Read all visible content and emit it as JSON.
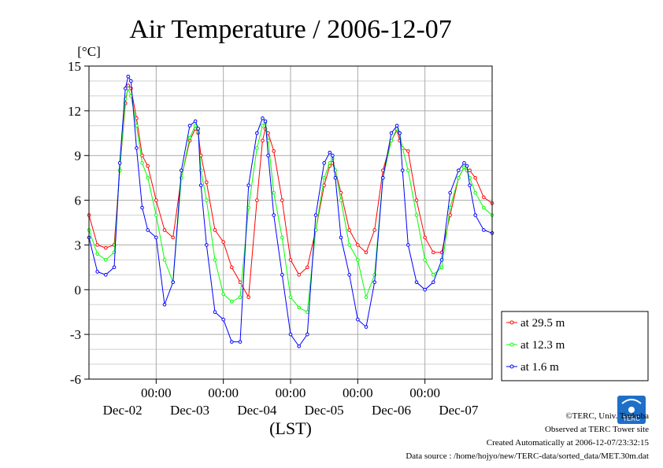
{
  "chart_data": {
    "type": "line",
    "title": "Air Temperature / 2006-12-07",
    "yunit": "[°C]",
    "xlabel": "(LST)",
    "ylim": [
      -6,
      15
    ],
    "yticks": [
      15,
      12,
      9,
      6,
      3,
      0,
      -3,
      -6
    ],
    "ytick_labels": [
      "15",
      "12",
      "9",
      "6",
      "3",
      "0",
      "-3",
      "-6"
    ],
    "x_hours_range": [
      0,
      144
    ],
    "xticks": [
      {
        "time": "00:00",
        "date": "Dec-02",
        "hour": 24
      },
      {
        "time": "00:00",
        "date": "Dec-03",
        "hour": 48
      },
      {
        "time": "00:00",
        "date": "Dec-04",
        "hour": 72
      },
      {
        "time": "00:00",
        "date": "Dec-05",
        "hour": 96
      },
      {
        "time": "00:00",
        "date": "Dec-06",
        "hour": 120
      },
      {
        "time": "00:00",
        "date": "Dec-07",
        "hour": null
      }
    ],
    "grid": true,
    "legend_position": "right",
    "x": [
      0,
      3,
      6,
      9,
      11,
      13,
      14,
      15,
      17,
      19,
      21,
      24,
      27,
      30,
      33,
      36,
      38,
      39,
      40,
      42,
      45,
      48,
      51,
      54,
      57,
      60,
      62,
      63,
      64,
      66,
      69,
      72,
      75,
      78,
      81,
      84,
      86,
      87,
      88,
      90,
      93,
      96,
      99,
      102,
      105,
      108,
      110,
      111,
      112,
      114,
      117,
      120,
      123,
      126,
      129,
      132,
      134,
      135,
      136,
      138,
      141,
      144
    ],
    "series": [
      {
        "name": "at 29.5 m",
        "color": "#ff0000",
        "values": [
          5.0,
          3.0,
          2.8,
          3.0,
          8.0,
          12.5,
          13.7,
          13.5,
          11.5,
          9.0,
          8.3,
          6.0,
          4.0,
          3.5,
          7.5,
          10.0,
          10.8,
          10.5,
          9.0,
          7.2,
          4.0,
          3.2,
          1.5,
          0.5,
          -0.5,
          6.0,
          10.0,
          10.8,
          10.5,
          9.3,
          6.0,
          2.0,
          1.0,
          1.5,
          4.0,
          7.0,
          8.3,
          8.5,
          8.0,
          6.5,
          4.0,
          3.0,
          2.5,
          4.0,
          8.0,
          10.0,
          10.7,
          10.0,
          9.5,
          9.3,
          6.0,
          3.5,
          2.5,
          2.5,
          5.0,
          7.5,
          8.2,
          8.0,
          8.0,
          7.5,
          6.2,
          5.8
        ]
      },
      {
        "name": "at 12.3 m",
        "color": "#00ff00",
        "values": [
          4.0,
          2.4,
          2.0,
          2.5,
          8.0,
          12.8,
          13.5,
          13.0,
          11.0,
          8.5,
          7.5,
          5.0,
          2.0,
          0.5,
          7.5,
          10.2,
          11.0,
          10.6,
          8.0,
          6.0,
          2.0,
          -0.3,
          -0.8,
          -0.5,
          5.5,
          9.5,
          11.0,
          11.2,
          10.0,
          6.5,
          3.5,
          -0.5,
          -1.2,
          -1.5,
          4.0,
          7.5,
          8.5,
          8.8,
          8.0,
          6.0,
          3.0,
          2.0,
          -0.5,
          1.0,
          7.5,
          10.0,
          10.8,
          10.5,
          9.5,
          8.0,
          5.0,
          2.0,
          1.0,
          1.5,
          5.5,
          7.5,
          8.2,
          8.0,
          7.5,
          6.5,
          5.5,
          5.0
        ]
      },
      {
        "name": "at 1.6 m",
        "color": "#0000ff",
        "values": [
          3.5,
          1.2,
          1.0,
          1.5,
          8.5,
          13.5,
          14.3,
          14.0,
          9.5,
          5.5,
          4.0,
          3.5,
          -1.0,
          0.5,
          8.0,
          11.0,
          11.3,
          10.8,
          7.0,
          3.0,
          -1.5,
          -2.0,
          -3.5,
          -3.5,
          7.0,
          10.5,
          11.5,
          11.3,
          9.0,
          5.0,
          1.0,
          -3.0,
          -3.8,
          -3.0,
          5.0,
          8.5,
          9.2,
          9.0,
          7.5,
          3.5,
          1.0,
          -2.0,
          -2.5,
          0.5,
          7.5,
          10.5,
          11.0,
          10.5,
          8.0,
          3.0,
          0.5,
          0.0,
          0.5,
          2.0,
          6.5,
          8.0,
          8.5,
          8.3,
          7.0,
          5.0,
          4.0,
          3.8
        ]
      }
    ]
  },
  "footer": {
    "credit": "©TERC, Univ. Tsukuba",
    "site": "Observed at TERC Tower site",
    "created": "Created Automatically at 2006-12-07/23:32:15",
    "source": "Data source : /home/hojyo/new/TERC-data/sorted_data/MET.30m.dat",
    "logo_text": "TERC"
  }
}
